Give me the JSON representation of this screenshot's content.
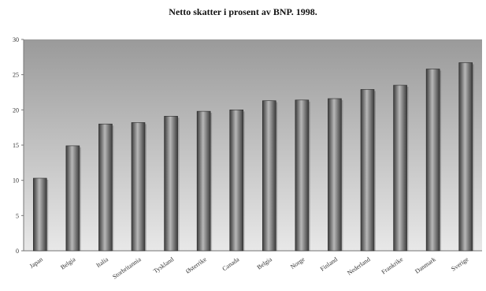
{
  "chart_data": {
    "type": "bar",
    "title": "Netto skatter i prosent av BNP. 1998.",
    "categories": [
      "Japan",
      "Belgia",
      "Italia",
      "Storbritannia",
      "Tyskland",
      "Østerrike",
      "Canada",
      "Belgia",
      "Norge",
      "Finland",
      "Nederland",
      "Frankrike",
      "Danmark",
      "Sverige"
    ],
    "values": [
      10.3,
      14.9,
      18.0,
      18.2,
      19.1,
      19.8,
      20.0,
      21.3,
      21.4,
      21.6,
      22.9,
      23.5,
      25.8,
      26.7
    ],
    "ylim": [
      0,
      30
    ],
    "yticks": [
      0,
      5,
      10,
      15,
      20,
      25,
      30
    ],
    "grid": false,
    "xlabel": "",
    "ylabel": ""
  },
  "colors": {
    "plot_top": "#9a9a9a",
    "plot_bottom": "#e8e8e8",
    "bar_dark": "#3c3c3c",
    "bar_light": "#b8b8b8"
  }
}
